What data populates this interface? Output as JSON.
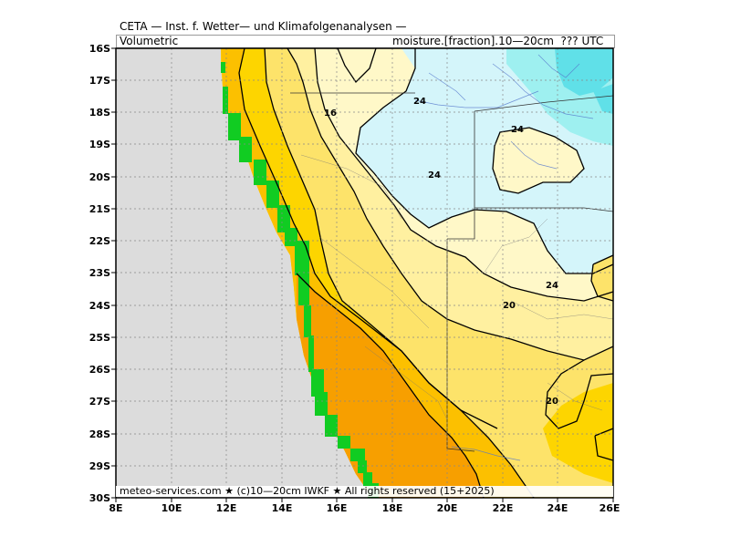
{
  "header": {
    "title": "CETA — Inst. f. Wetter— und Klimafolgenanalysen —",
    "left": "Volumetric",
    "right": "moisture.[fraction].10—20cm  ??? UTC"
  },
  "footer": "meteo-services.com ★ (c)10—20cm IWKF ★ All rights reserved (15+2025)",
  "map": {
    "lon_range": [
      8,
      26
    ],
    "lat_range": [
      -30,
      -16
    ],
    "lat_labels": [
      "16S",
      "17S",
      "18S",
      "19S",
      "20S",
      "21S",
      "22S",
      "23S",
      "24S",
      "25S",
      "26S",
      "27S",
      "28S",
      "29S",
      "30S"
    ],
    "lon_labels": [
      "8E",
      "10E",
      "12E",
      "14E",
      "16E",
      "18E",
      "20E",
      "22E",
      "24E",
      "26E"
    ],
    "contour_labels": [
      "16",
      "24",
      "24",
      "24",
      "24",
      "20",
      "20"
    ],
    "colors": {
      "ocean": "#dcdcdc",
      "coastal_mask": "#11cc22",
      "orange": "#f79f00",
      "amber": "#fcc000",
      "gold": "#fdd500",
      "yellow": "#fde36a",
      "light_yellow": "#fff0a0",
      "cream": "#fff8c8",
      "pale_cyan": "#d4f5fa",
      "cyan": "#9ef0f0",
      "bright_cyan": "#60e0e8",
      "grid": "#888888",
      "rivers": "#5577cc"
    }
  }
}
